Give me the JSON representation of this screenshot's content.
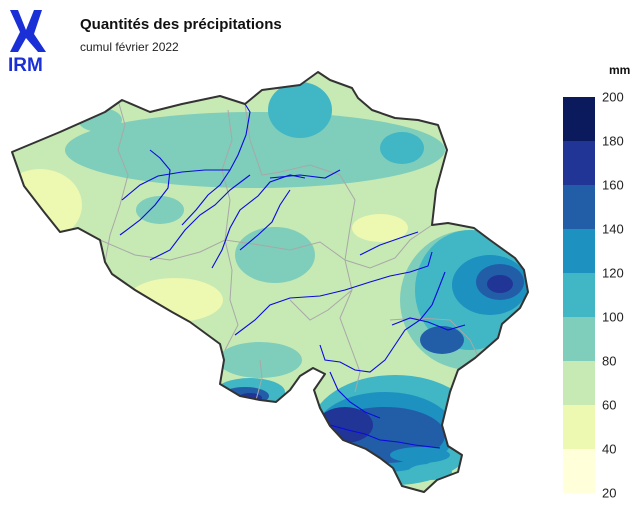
{
  "title": "Quantités des précipitations",
  "subtitle": "cumul février 2022",
  "logo": {
    "text": "IRM",
    "color": "#1a2fd6"
  },
  "legend": {
    "unit": "mm",
    "labels": [
      "200",
      "180",
      "160",
      "140",
      "120",
      "100",
      "80",
      "60",
      "40",
      "20"
    ],
    "classes": [
      {
        "range": "180-200",
        "color": "#0a1a5c"
      },
      {
        "range": "160-180",
        "color": "#213597"
      },
      {
        "range": "140-160",
        "color": "#225ea8"
      },
      {
        "range": "120-140",
        "color": "#1d91c0"
      },
      {
        "range": "100-120",
        "color": "#41b6c4"
      },
      {
        "range": "80-100",
        "color": "#7fcdbb"
      },
      {
        "range": "60-80",
        "color": "#c7e9b4"
      },
      {
        "range": "40-60",
        "color": "#edf8b1"
      },
      {
        "range": "20-40",
        "color": "#ffffd9"
      }
    ]
  },
  "map": {
    "border_color": "#333333",
    "province_border_color": "#a8a8a8",
    "river_color": "#0a0adf"
  }
}
